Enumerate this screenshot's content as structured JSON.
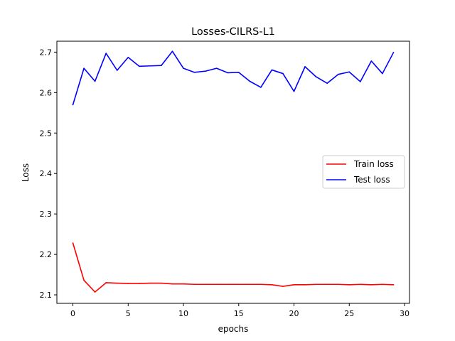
{
  "chart_data": {
    "type": "line",
    "title": "Losses-CILRS-L1",
    "xlabel": "epochs",
    "ylabel": "Loss",
    "xlim": [
      -1.45,
      30.45
    ],
    "ylim": [
      2.079,
      2.727
    ],
    "xticks": [
      0,
      5,
      10,
      15,
      20,
      25,
      30
    ],
    "yticks": [
      2.1,
      2.2,
      2.3,
      2.4,
      2.5,
      2.6,
      2.7
    ],
    "xtick_labels": [
      "0",
      "5",
      "10",
      "15",
      "20",
      "25",
      "30"
    ],
    "ytick_labels": [
      "2.1",
      "2.2",
      "2.3",
      "2.4",
      "2.5",
      "2.6",
      "2.7"
    ],
    "grid": false,
    "legend_position": "center-right",
    "x": [
      0,
      1,
      2,
      3,
      4,
      5,
      6,
      7,
      8,
      9,
      10,
      11,
      12,
      13,
      14,
      15,
      16,
      17,
      18,
      19,
      20,
      21,
      22,
      23,
      24,
      25,
      26,
      27,
      28,
      29
    ],
    "series": [
      {
        "name": "Train loss",
        "color": "#ff0000",
        "values": [
          2.228,
          2.136,
          2.107,
          2.13,
          2.129,
          2.128,
          2.128,
          2.129,
          2.129,
          2.127,
          2.127,
          2.126,
          2.126,
          2.126,
          2.126,
          2.126,
          2.126,
          2.126,
          2.125,
          2.121,
          2.125,
          2.125,
          2.126,
          2.126,
          2.126,
          2.125,
          2.126,
          2.125,
          2.126,
          2.125
        ]
      },
      {
        "name": "Test loss",
        "color": "#0000ff",
        "values": [
          2.57,
          2.66,
          2.628,
          2.697,
          2.655,
          2.687,
          2.665,
          2.666,
          2.667,
          2.702,
          2.66,
          2.65,
          2.653,
          2.66,
          2.649,
          2.65,
          2.628,
          2.613,
          2.656,
          2.647,
          2.603,
          2.664,
          2.639,
          2.623,
          2.645,
          2.651,
          2.627,
          2.678,
          2.647,
          2.699
        ]
      }
    ]
  }
}
